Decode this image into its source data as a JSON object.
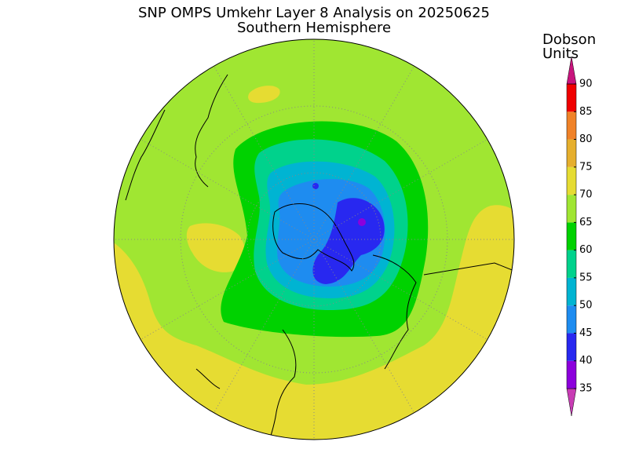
{
  "title": "SNP OMPS Umkehr Layer 8 Analysis on 20250625",
  "subtitle": "Southern Hemisphere",
  "colorbar": {
    "title": [
      "Dobson",
      "Units"
    ],
    "ticks": [
      35,
      40,
      45,
      50,
      55,
      60,
      65,
      70,
      75,
      80,
      85,
      90
    ],
    "colors": [
      "#c83cb4",
      "#8c00dc",
      "#2828f0",
      "#1e8cf0",
      "#00b4d2",
      "#00d28c",
      "#00d200",
      "#a0e632",
      "#e6dc32",
      "#e6af2d",
      "#f08228",
      "#f00000",
      "#c8147d"
    ]
  }
}
